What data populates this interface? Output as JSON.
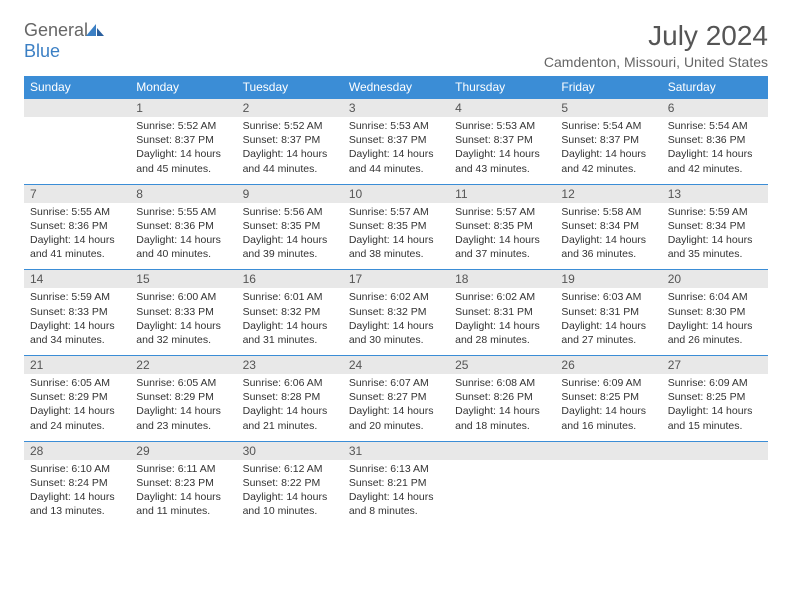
{
  "logo": {
    "text_gray": "General",
    "text_blue": "Blue"
  },
  "title": "July 2024",
  "location": "Camdenton, Missouri, United States",
  "day_names": [
    "Sunday",
    "Monday",
    "Tuesday",
    "Wednesday",
    "Thursday",
    "Friday",
    "Saturday"
  ],
  "header_bg": "#3b8dd6",
  "header_fg": "#ffffff",
  "num_row_bg": "#e8e8e8",
  "weeks": [
    {
      "days": [
        null,
        {
          "n": "1",
          "sr": "Sunrise: 5:52 AM",
          "ss": "Sunset: 8:37 PM",
          "d1": "Daylight: 14 hours",
          "d2": "and 45 minutes."
        },
        {
          "n": "2",
          "sr": "Sunrise: 5:52 AM",
          "ss": "Sunset: 8:37 PM",
          "d1": "Daylight: 14 hours",
          "d2": "and 44 minutes."
        },
        {
          "n": "3",
          "sr": "Sunrise: 5:53 AM",
          "ss": "Sunset: 8:37 PM",
          "d1": "Daylight: 14 hours",
          "d2": "and 44 minutes."
        },
        {
          "n": "4",
          "sr": "Sunrise: 5:53 AM",
          "ss": "Sunset: 8:37 PM",
          "d1": "Daylight: 14 hours",
          "d2": "and 43 minutes."
        },
        {
          "n": "5",
          "sr": "Sunrise: 5:54 AM",
          "ss": "Sunset: 8:37 PM",
          "d1": "Daylight: 14 hours",
          "d2": "and 42 minutes."
        },
        {
          "n": "6",
          "sr": "Sunrise: 5:54 AM",
          "ss": "Sunset: 8:36 PM",
          "d1": "Daylight: 14 hours",
          "d2": "and 42 minutes."
        }
      ]
    },
    {
      "days": [
        {
          "n": "7",
          "sr": "Sunrise: 5:55 AM",
          "ss": "Sunset: 8:36 PM",
          "d1": "Daylight: 14 hours",
          "d2": "and 41 minutes."
        },
        {
          "n": "8",
          "sr": "Sunrise: 5:55 AM",
          "ss": "Sunset: 8:36 PM",
          "d1": "Daylight: 14 hours",
          "d2": "and 40 minutes."
        },
        {
          "n": "9",
          "sr": "Sunrise: 5:56 AM",
          "ss": "Sunset: 8:35 PM",
          "d1": "Daylight: 14 hours",
          "d2": "and 39 minutes."
        },
        {
          "n": "10",
          "sr": "Sunrise: 5:57 AM",
          "ss": "Sunset: 8:35 PM",
          "d1": "Daylight: 14 hours",
          "d2": "and 38 minutes."
        },
        {
          "n": "11",
          "sr": "Sunrise: 5:57 AM",
          "ss": "Sunset: 8:35 PM",
          "d1": "Daylight: 14 hours",
          "d2": "and 37 minutes."
        },
        {
          "n": "12",
          "sr": "Sunrise: 5:58 AM",
          "ss": "Sunset: 8:34 PM",
          "d1": "Daylight: 14 hours",
          "d2": "and 36 minutes."
        },
        {
          "n": "13",
          "sr": "Sunrise: 5:59 AM",
          "ss": "Sunset: 8:34 PM",
          "d1": "Daylight: 14 hours",
          "d2": "and 35 minutes."
        }
      ]
    },
    {
      "days": [
        {
          "n": "14",
          "sr": "Sunrise: 5:59 AM",
          "ss": "Sunset: 8:33 PM",
          "d1": "Daylight: 14 hours",
          "d2": "and 34 minutes."
        },
        {
          "n": "15",
          "sr": "Sunrise: 6:00 AM",
          "ss": "Sunset: 8:33 PM",
          "d1": "Daylight: 14 hours",
          "d2": "and 32 minutes."
        },
        {
          "n": "16",
          "sr": "Sunrise: 6:01 AM",
          "ss": "Sunset: 8:32 PM",
          "d1": "Daylight: 14 hours",
          "d2": "and 31 minutes."
        },
        {
          "n": "17",
          "sr": "Sunrise: 6:02 AM",
          "ss": "Sunset: 8:32 PM",
          "d1": "Daylight: 14 hours",
          "d2": "and 30 minutes."
        },
        {
          "n": "18",
          "sr": "Sunrise: 6:02 AM",
          "ss": "Sunset: 8:31 PM",
          "d1": "Daylight: 14 hours",
          "d2": "and 28 minutes."
        },
        {
          "n": "19",
          "sr": "Sunrise: 6:03 AM",
          "ss": "Sunset: 8:31 PM",
          "d1": "Daylight: 14 hours",
          "d2": "and 27 minutes."
        },
        {
          "n": "20",
          "sr": "Sunrise: 6:04 AM",
          "ss": "Sunset: 8:30 PM",
          "d1": "Daylight: 14 hours",
          "d2": "and 26 minutes."
        }
      ]
    },
    {
      "days": [
        {
          "n": "21",
          "sr": "Sunrise: 6:05 AM",
          "ss": "Sunset: 8:29 PM",
          "d1": "Daylight: 14 hours",
          "d2": "and 24 minutes."
        },
        {
          "n": "22",
          "sr": "Sunrise: 6:05 AM",
          "ss": "Sunset: 8:29 PM",
          "d1": "Daylight: 14 hours",
          "d2": "and 23 minutes."
        },
        {
          "n": "23",
          "sr": "Sunrise: 6:06 AM",
          "ss": "Sunset: 8:28 PM",
          "d1": "Daylight: 14 hours",
          "d2": "and 21 minutes."
        },
        {
          "n": "24",
          "sr": "Sunrise: 6:07 AM",
          "ss": "Sunset: 8:27 PM",
          "d1": "Daylight: 14 hours",
          "d2": "and 20 minutes."
        },
        {
          "n": "25",
          "sr": "Sunrise: 6:08 AM",
          "ss": "Sunset: 8:26 PM",
          "d1": "Daylight: 14 hours",
          "d2": "and 18 minutes."
        },
        {
          "n": "26",
          "sr": "Sunrise: 6:09 AM",
          "ss": "Sunset: 8:25 PM",
          "d1": "Daylight: 14 hours",
          "d2": "and 16 minutes."
        },
        {
          "n": "27",
          "sr": "Sunrise: 6:09 AM",
          "ss": "Sunset: 8:25 PM",
          "d1": "Daylight: 14 hours",
          "d2": "and 15 minutes."
        }
      ]
    },
    {
      "days": [
        {
          "n": "28",
          "sr": "Sunrise: 6:10 AM",
          "ss": "Sunset: 8:24 PM",
          "d1": "Daylight: 14 hours",
          "d2": "and 13 minutes."
        },
        {
          "n": "29",
          "sr": "Sunrise: 6:11 AM",
          "ss": "Sunset: 8:23 PM",
          "d1": "Daylight: 14 hours",
          "d2": "and 11 minutes."
        },
        {
          "n": "30",
          "sr": "Sunrise: 6:12 AM",
          "ss": "Sunset: 8:22 PM",
          "d1": "Daylight: 14 hours",
          "d2": "and 10 minutes."
        },
        {
          "n": "31",
          "sr": "Sunrise: 6:13 AM",
          "ss": "Sunset: 8:21 PM",
          "d1": "Daylight: 14 hours",
          "d2": "and 8 minutes."
        },
        null,
        null,
        null
      ]
    }
  ]
}
